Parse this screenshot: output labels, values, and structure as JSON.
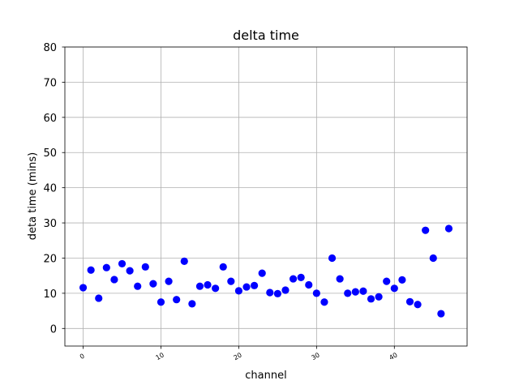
{
  "chart_data": {
    "type": "scatter",
    "title": "delta time",
    "xlabel": "channel",
    "ylabel": "deta time (mins)",
    "xlim": [
      -2.35,
      49.35
    ],
    "ylim": [
      -5,
      80
    ],
    "xticks": [
      0,
      10,
      20,
      30,
      40
    ],
    "yticks": [
      0,
      10,
      20,
      30,
      40,
      50,
      60,
      70,
      80
    ],
    "grid": true,
    "marker_color": "#0000ff",
    "series": [
      {
        "x": [
          0,
          1,
          2,
          3,
          4,
          5,
          6,
          7,
          8,
          9,
          10,
          11,
          12,
          13,
          14,
          15,
          16,
          17,
          18,
          19,
          20,
          21,
          22,
          23,
          24,
          25,
          26,
          27,
          28,
          29,
          30,
          31,
          32,
          33,
          34,
          35,
          36,
          37,
          38,
          39,
          40,
          41,
          42,
          43,
          44,
          45,
          46,
          47
        ],
        "y": [
          11.6,
          16.6,
          8.6,
          17.3,
          13.9,
          18.4,
          16.4,
          12.0,
          17.5,
          12.7,
          7.5,
          13.4,
          8.2,
          19.1,
          7.0,
          12.0,
          12.4,
          11.4,
          17.5,
          13.4,
          10.7,
          11.8,
          12.2,
          15.7,
          10.2,
          9.9,
          10.9,
          14.1,
          14.5,
          12.4,
          10.0,
          7.5,
          20.0,
          14.1,
          10.0,
          10.4,
          10.6,
          8.4,
          9.0,
          13.4,
          11.4,
          13.8,
          7.6,
          6.8,
          27.9,
          20.0,
          4.2,
          28.4
        ]
      }
    ]
  }
}
